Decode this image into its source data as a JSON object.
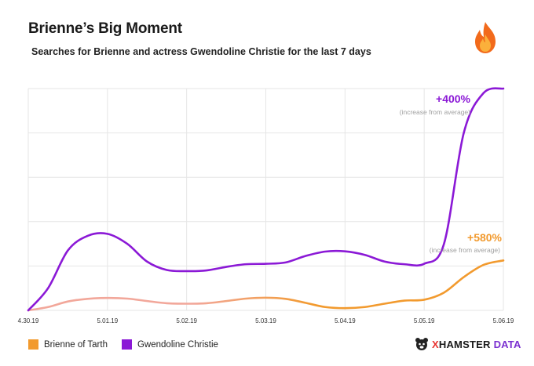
{
  "header": {
    "title": "Brienne’s Big Moment",
    "subtitle": "Searches for Brienne and actress Gwendoline Christie for the last 7 days"
  },
  "icons": {
    "header_icon": "fire-icon",
    "brand_icon": "hamster-logo-icon"
  },
  "colors": {
    "gwendoline": "#8b19d6",
    "brienne": "#f29a2e",
    "brienne_light": "#f2a79a",
    "grid": "#e6e6e6",
    "note": "#a0a0a0"
  },
  "brand": {
    "prefix": "X",
    "name": "HAMSTER",
    "suffix": "DATA"
  },
  "chart_data": {
    "type": "line",
    "title": "Brienne’s Big Moment",
    "subtitle": "Searches for Brienne and actress Gwendoline Christie for the last 7 days",
    "categories": [
      "4.30.19",
      "5.01.19",
      "5.02.19",
      "5.03.19",
      "5.04.19",
      "5.05.19",
      "5.06.19"
    ],
    "ylim": [
      0,
      100
    ],
    "grid": true,
    "legend": "bottom-left",
    "series": [
      {
        "name": "Brienne of Tarth",
        "color": "#f29a2e",
        "x": [
          0,
          0.25,
          0.5,
          0.75,
          1.0,
          1.25,
          1.5,
          1.75,
          2.0,
          2.25,
          2.5,
          2.75,
          3.0,
          3.25,
          3.5,
          3.75,
          4.0,
          4.25,
          4.5,
          4.75,
          5.0,
          5.25,
          5.5,
          5.75,
          6.0
        ],
        "values": [
          0,
          1.5,
          4,
          5.2,
          5.6,
          5.3,
          4.2,
          3.2,
          3.0,
          3.2,
          4.2,
          5.3,
          5.7,
          5.2,
          3.4,
          1.5,
          1.0,
          1.5,
          3.0,
          4.4,
          4.8,
          8.0,
          15,
          20.5,
          22.5
        ]
      },
      {
        "name": "Gwendoline Christie",
        "color": "#8b19d6",
        "x": [
          0,
          0.25,
          0.5,
          0.75,
          1.0,
          1.25,
          1.5,
          1.75,
          2.0,
          2.25,
          2.5,
          2.75,
          3.0,
          3.25,
          3.5,
          3.75,
          4.0,
          4.25,
          4.5,
          4.75,
          5.0,
          5.25,
          5.5,
          5.75,
          6.0
        ],
        "values": [
          0,
          10,
          27,
          33.6,
          34.5,
          30,
          22,
          18.2,
          17.7,
          18.0,
          19.6,
          20.8,
          21.0,
          21.6,
          24.5,
          26.5,
          26.6,
          25.0,
          22.0,
          20.8,
          21.0,
          30,
          80,
          98,
          100
        ]
      }
    ],
    "annotations": [
      {
        "series": "Gwendoline Christie",
        "label": "+400%",
        "note": "(increase from average)"
      },
      {
        "series": "Brienne of Tarth",
        "label": "+580%",
        "note": "(increase from average)"
      }
    ]
  }
}
